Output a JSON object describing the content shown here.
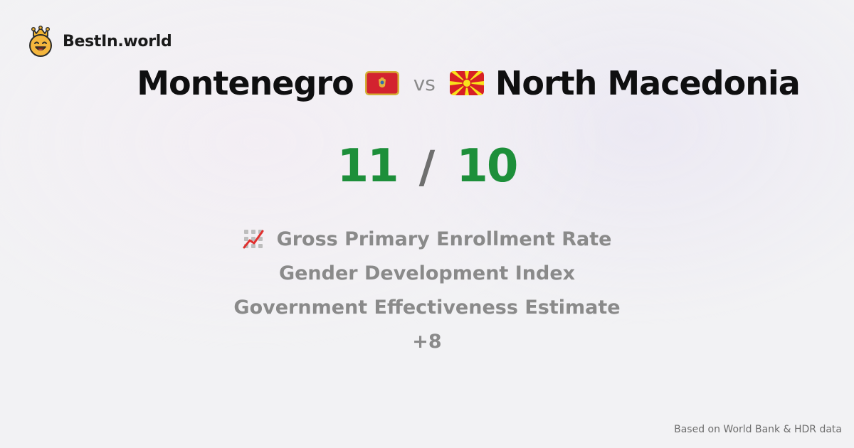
{
  "brand": {
    "name": "BestIn.world",
    "logo_icon": "crown-smiley-icon"
  },
  "comparison": {
    "left_country": "Montenegro",
    "left_flag_icon": "montenegro-flag-icon",
    "vs_label": "vs",
    "right_country": "North Macedonia",
    "right_flag_icon": "north-macedonia-flag-icon"
  },
  "score": {
    "left": "11",
    "separator": "/",
    "right": "10",
    "color": "#1d8f3a"
  },
  "metrics": [
    {
      "label": "Gross Primary Enrollment Rate",
      "icon": "chart-increasing-icon"
    },
    {
      "label": "Gender Development Index"
    },
    {
      "label": "Government Effectiveness Estimate"
    },
    {
      "label": "+8"
    }
  ],
  "footer": {
    "source_note": "Based on World Bank & HDR data"
  }
}
